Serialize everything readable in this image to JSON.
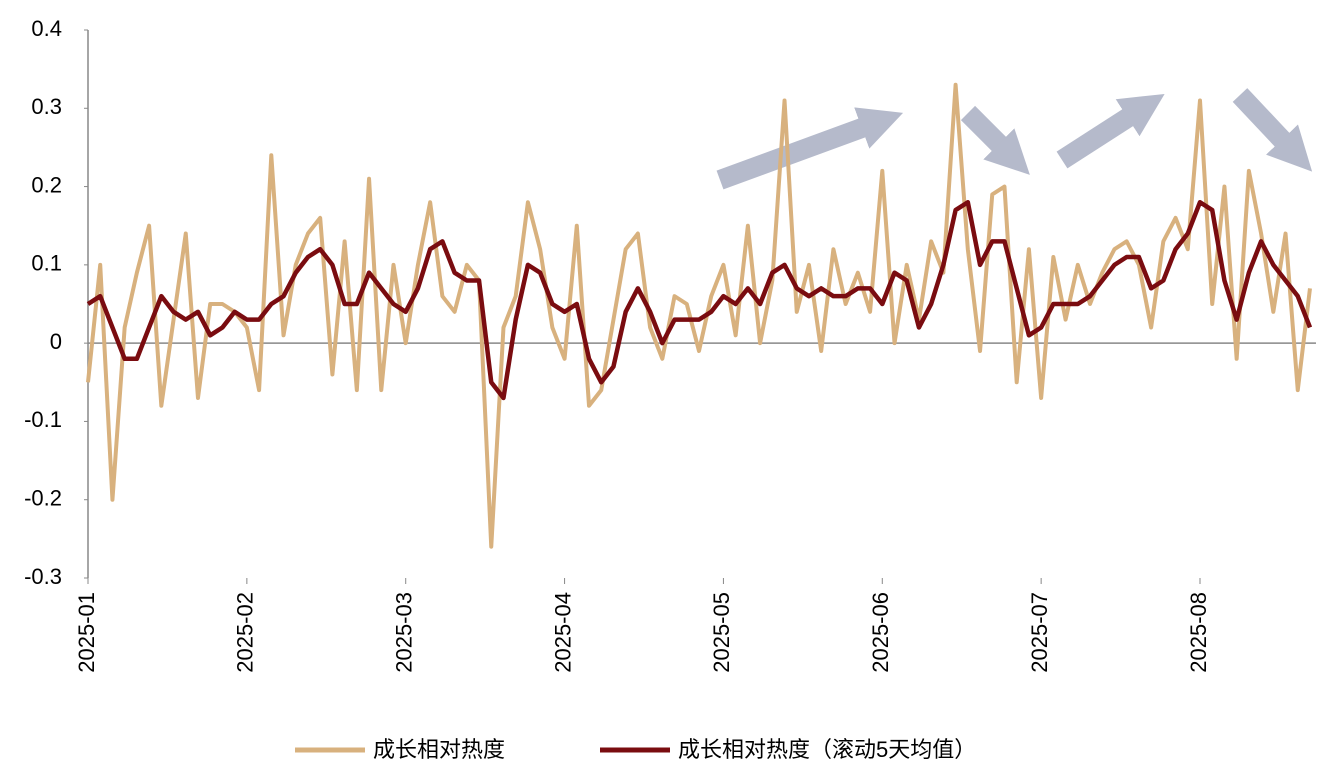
{
  "chart_data": {
    "type": "line",
    "categories": [
      "2025-01",
      null,
      null,
      null,
      null,
      null,
      null,
      null,
      null,
      null,
      null,
      null,
      null,
      "2025-02",
      null,
      null,
      null,
      null,
      null,
      null,
      null,
      null,
      null,
      null,
      null,
      null,
      "2025-03",
      null,
      null,
      null,
      null,
      null,
      null,
      null,
      null,
      null,
      null,
      null,
      null,
      "2025-04",
      null,
      null,
      null,
      null,
      null,
      null,
      null,
      null,
      null,
      null,
      null,
      null,
      "2025-05",
      null,
      null,
      null,
      null,
      null,
      null,
      null,
      null,
      null,
      null,
      null,
      null,
      "2025-06",
      null,
      null,
      null,
      null,
      null,
      null,
      null,
      null,
      null,
      null,
      null,
      null,
      "2025-07",
      null,
      null,
      null,
      null,
      null,
      null,
      null,
      null,
      null,
      null,
      null,
      null,
      "2025-08",
      null,
      null,
      null,
      null,
      null,
      null,
      null,
      null,
      null
    ],
    "series": [
      {
        "name": "成长相对热度",
        "color": "#d8b17e",
        "values": [
          -0.05,
          0.1,
          -0.2,
          0.02,
          0.09,
          0.15,
          -0.08,
          0.03,
          0.14,
          -0.07,
          0.05,
          0.05,
          0.04,
          0.02,
          -0.06,
          0.24,
          0.01,
          0.1,
          0.14,
          0.16,
          -0.04,
          0.13,
          -0.06,
          0.21,
          -0.06,
          0.1,
          0.0,
          0.1,
          0.18,
          0.06,
          0.04,
          0.1,
          0.08,
          -0.26,
          0.02,
          0.06,
          0.18,
          0.12,
          0.02,
          -0.02,
          0.15,
          -0.08,
          -0.06,
          0.03,
          0.12,
          0.14,
          0.02,
          -0.02,
          0.06,
          0.05,
          -0.01,
          0.06,
          0.1,
          0.01,
          0.15,
          0.0,
          0.08,
          0.31,
          0.04,
          0.1,
          -0.01,
          0.12,
          0.05,
          0.09,
          0.04,
          0.22,
          0.0,
          0.1,
          0.03,
          0.13,
          0.09,
          0.33,
          0.12,
          -0.01,
          0.19,
          0.2,
          -0.05,
          0.12,
          -0.07,
          0.11,
          0.03,
          0.1,
          0.05,
          0.09,
          0.12,
          0.13,
          0.1,
          0.02,
          0.13,
          0.16,
          0.12,
          0.31,
          0.05,
          0.2,
          -0.02,
          0.22,
          0.14,
          0.04,
          0.14,
          -0.06,
          0.07
        ]
      },
      {
        "name": "成长相对热度（滚动5天均值）",
        "color": "#7a0c10",
        "values": [
          0.05,
          0.06,
          0.02,
          -0.02,
          -0.02,
          0.02,
          0.06,
          0.04,
          0.03,
          0.04,
          0.01,
          0.02,
          0.04,
          0.03,
          0.03,
          0.05,
          0.06,
          0.09,
          0.11,
          0.12,
          0.1,
          0.05,
          0.05,
          0.09,
          0.07,
          0.05,
          0.04,
          0.07,
          0.12,
          0.13,
          0.09,
          0.08,
          0.08,
          -0.05,
          -0.07,
          0.03,
          0.1,
          0.09,
          0.05,
          0.04,
          0.05,
          -0.02,
          -0.05,
          -0.03,
          0.04,
          0.07,
          0.04,
          0.0,
          0.03,
          0.03,
          0.03,
          0.04,
          0.06,
          0.05,
          0.07,
          0.05,
          0.09,
          0.1,
          0.07,
          0.06,
          0.07,
          0.06,
          0.06,
          0.07,
          0.07,
          0.05,
          0.09,
          0.08,
          0.02,
          0.05,
          0.1,
          0.17,
          0.18,
          0.1,
          0.13,
          0.13,
          0.07,
          0.01,
          0.02,
          0.05,
          0.05,
          0.05,
          0.06,
          0.08,
          0.1,
          0.11,
          0.11,
          0.07,
          0.08,
          0.12,
          0.14,
          0.18,
          0.17,
          0.08,
          0.03,
          0.09,
          0.13,
          0.1,
          0.08,
          0.06,
          0.02
        ]
      }
    ],
    "ylim": [
      -0.3,
      0.4
    ],
    "yticks": [
      -0.3,
      -0.2,
      -0.1,
      0,
      0.1,
      0.2,
      0.3,
      0.4
    ]
  }
}
